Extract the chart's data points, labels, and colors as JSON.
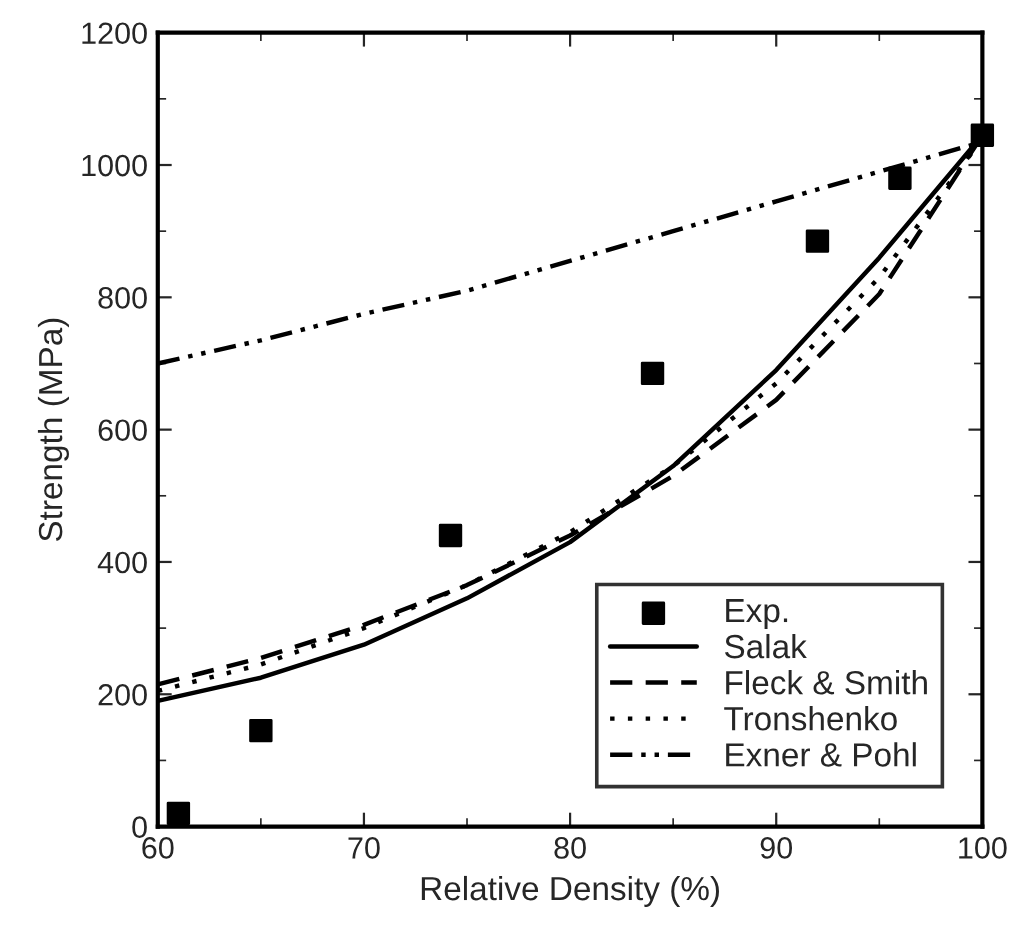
{
  "chart_data": {
    "type": "line",
    "xlabel": "Relative Density (%)",
    "ylabel": "Strength (MPa)",
    "xlim": [
      60,
      100
    ],
    "xticks": [
      60,
      70,
      80,
      90,
      100
    ],
    "ylim": [
      0,
      1200
    ],
    "yticks": [
      0,
      200,
      400,
      600,
      800,
      1000,
      1200
    ],
    "grid": false,
    "legend": "bottom right",
    "series": [
      {
        "name": "Exp.",
        "type": "scatter",
        "marker": "square",
        "color": "#000000",
        "x": [
          61,
          65,
          74.2,
          84,
          92,
          96,
          100
        ],
        "values": [
          20,
          145,
          440,
          685,
          885,
          980,
          1045
        ]
      },
      {
        "name": "Salak",
        "line_style": "solid",
        "color": "#000000",
        "x": [
          60,
          65,
          70,
          75,
          80,
          85,
          90,
          95,
          100
        ],
        "values": [
          190,
          225,
          275,
          345,
          430,
          545,
          690,
          860,
          1045
        ]
      },
      {
        "name": "Fleck & Smith",
        "line_style": "dashed",
        "color": "#000000",
        "x": [
          60,
          65,
          70,
          75,
          80,
          85,
          90,
          95,
          100
        ],
        "values": [
          215,
          255,
          305,
          365,
          440,
          530,
          645,
          805,
          1045
        ]
      },
      {
        "name": "Tronshenko",
        "line_style": "dotted",
        "color": "#000000",
        "x": [
          60,
          65,
          70,
          75,
          80,
          85,
          90,
          95,
          100
        ],
        "values": [
          205,
          245,
          300,
          365,
          445,
          545,
          670,
          830,
          1040
        ]
      },
      {
        "name": "Exner & Pohl",
        "line_style": "dashdot",
        "color": "#000000",
        "x": [
          60,
          65,
          70,
          75,
          80,
          85,
          90,
          95,
          100
        ],
        "values": [
          700,
          735,
          775,
          810,
          855,
          900,
          945,
          990,
          1035
        ]
      }
    ]
  }
}
